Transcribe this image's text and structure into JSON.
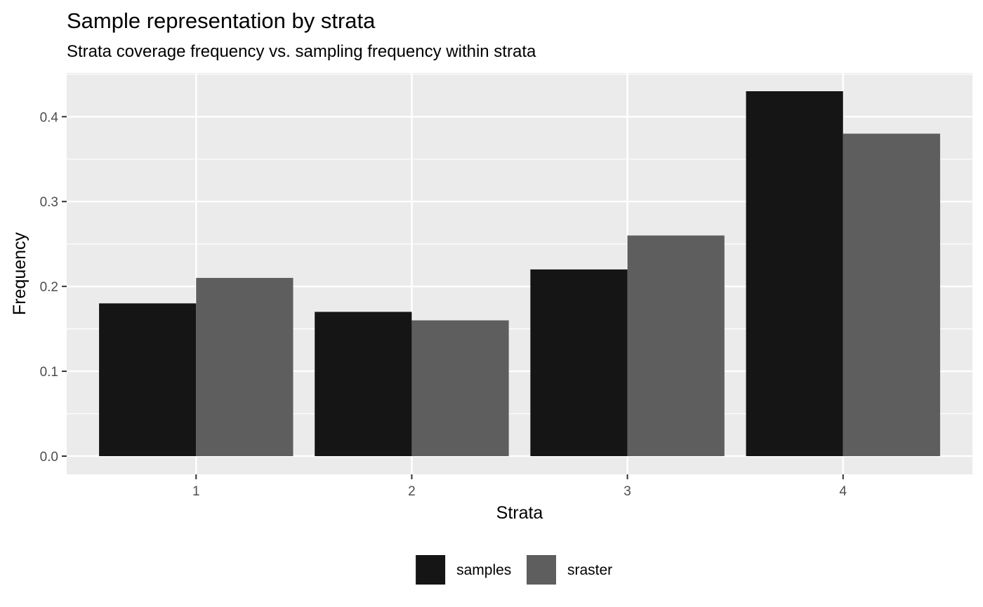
{
  "chart_data": {
    "type": "bar",
    "title": "Sample representation by strata",
    "subtitle": "Strata coverage frequency vs. sampling frequency within strata",
    "xlabel": "Strata",
    "ylabel": "Frequency",
    "categories": [
      "1",
      "2",
      "3",
      "4"
    ],
    "series": [
      {
        "name": "samples",
        "values": [
          0.18,
          0.17,
          0.22,
          0.43
        ],
        "color": "#151515"
      },
      {
        "name": "sraster",
        "values": [
          0.21,
          0.16,
          0.26,
          0.38
        ],
        "color": "#5e5e5e"
      }
    ],
    "ylim": [
      -0.0215,
      0.4515
    ],
    "yticks": [
      "0.0",
      "0.1",
      "0.2",
      "0.3",
      "0.4"
    ],
    "grid": true,
    "panel_background": "#ebebeb",
    "legend_position": "bottom"
  }
}
